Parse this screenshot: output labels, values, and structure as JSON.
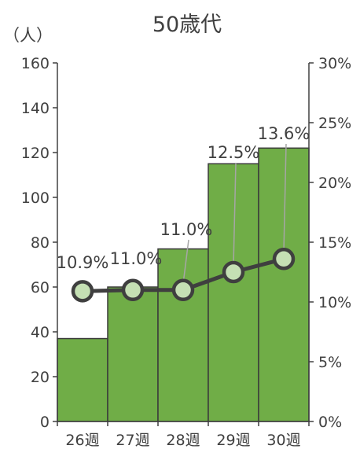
{
  "chart_data": {
    "type": "bar+line",
    "title": "50歳代",
    "y_left_unit_label": "（人）",
    "categories": [
      "26週",
      "27週",
      "28週",
      "29週",
      "30週"
    ],
    "bar_values": [
      37,
      60,
      77,
      115,
      122
    ],
    "line_values": [
      10.9,
      11.0,
      11.0,
      12.5,
      13.6
    ],
    "line_labels": [
      "10.9%",
      "11.0%",
      "11.0%",
      "12.5%",
      "13.6%"
    ],
    "y_left": {
      "min": 0,
      "max": 160,
      "step": 20,
      "ticks": [
        "0",
        "20",
        "40",
        "60",
        "80",
        "100",
        "120",
        "140",
        "160"
      ]
    },
    "y_right": {
      "min": 0,
      "max": 30,
      "step": 5,
      "ticks": [
        "0%",
        "5%",
        "10%",
        "15%",
        "20%",
        "25%",
        "30%"
      ]
    },
    "colors": {
      "bar": "#70ad47",
      "bar_edge": "#3a3a3a",
      "line": "#3f3f3f",
      "marker_fill": "#c5e0b4",
      "text": "#404040",
      "leader": "#a6a6a6"
    }
  }
}
